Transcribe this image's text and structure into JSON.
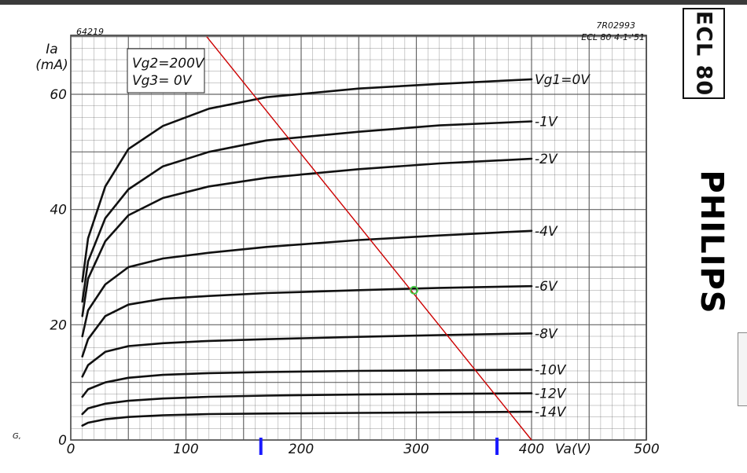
{
  "header": {
    "left_code": "64219",
    "right_code": "7R02993",
    "right_sub": "ECL 80 4-1-'51"
  },
  "conditions": {
    "line1": "Vg2=200V",
    "line2": "Vg3= 0V"
  },
  "model": "ECL 80",
  "brand": "PHILIPS",
  "stray_mark": "G,",
  "colors": {
    "curve": "#111111",
    "grid": "#555555",
    "load_line": "#cc0000",
    "operating_point": "#44cc44",
    "marker": "#1a1aff"
  },
  "chart_data": {
    "type": "line",
    "title": "",
    "xlabel": "Va(V)",
    "ylabel": "Ia\n(mA)",
    "xlim": [
      0,
      500
    ],
    "ylim": [
      0,
      70
    ],
    "x_ticks": [
      0,
      100,
      200,
      300,
      400,
      500
    ],
    "y_ticks": [
      0,
      20,
      40,
      60
    ],
    "grid": true,
    "series": [
      {
        "name": "Vg1=0V",
        "x": [
          10,
          15,
          30,
          50,
          80,
          120,
          170,
          250,
          320,
          400
        ],
        "y": [
          27.5,
          35,
          44,
          50.5,
          54.5,
          57.5,
          59.5,
          61,
          61.8,
          62.6
        ]
      },
      {
        "name": "-1V",
        "x": [
          10,
          15,
          30,
          50,
          80,
          120,
          170,
          250,
          320,
          400
        ],
        "y": [
          24,
          31,
          38.5,
          43.5,
          47.5,
          50,
          52,
          53.5,
          54.6,
          55.3
        ]
      },
      {
        "name": "-2V",
        "x": [
          10,
          15,
          30,
          50,
          80,
          120,
          170,
          250,
          320,
          400
        ],
        "y": [
          21.5,
          28,
          34.5,
          39,
          42,
          44,
          45.5,
          47,
          48,
          48.8
        ]
      },
      {
        "name": "-4V",
        "x": [
          10,
          15,
          30,
          50,
          80,
          120,
          170,
          250,
          320,
          400
        ],
        "y": [
          18,
          22.5,
          27,
          30,
          31.5,
          32.5,
          33.5,
          34.7,
          35.5,
          36.3
        ]
      },
      {
        "name": "-6V",
        "x": [
          10,
          15,
          30,
          50,
          80,
          120,
          170,
          250,
          320,
          400
        ],
        "y": [
          14.5,
          17.5,
          21.5,
          23.5,
          24.5,
          25,
          25.5,
          26,
          26.4,
          26.7
        ]
      },
      {
        "name": "-8V",
        "x": [
          10,
          15,
          30,
          50,
          80,
          120,
          170,
          250,
          320,
          400
        ],
        "y": [
          11,
          13,
          15.3,
          16.3,
          16.8,
          17.2,
          17.5,
          17.9,
          18.2,
          18.5
        ]
      },
      {
        "name": "-10V",
        "x": [
          10,
          15,
          30,
          50,
          80,
          120,
          170,
          250,
          320,
          400
        ],
        "y": [
          7.5,
          8.8,
          10,
          10.8,
          11.3,
          11.6,
          11.8,
          12,
          12.1,
          12.2
        ]
      },
      {
        "name": "-12V",
        "x": [
          10,
          15,
          30,
          50,
          80,
          120,
          170,
          250,
          320,
          400
        ],
        "y": [
          4.5,
          5.5,
          6.3,
          6.8,
          7.2,
          7.5,
          7.7,
          7.9,
          8,
          8.1
        ]
      },
      {
        "name": "-14V",
        "x": [
          10,
          15,
          30,
          50,
          80,
          120,
          170,
          250,
          320,
          400
        ],
        "y": [
          2.5,
          3,
          3.6,
          4,
          4.3,
          4.5,
          4.6,
          4.7,
          4.8,
          4.9
        ]
      }
    ],
    "load_line": {
      "x": [
        118,
        400
      ],
      "y": [
        70,
        0
      ]
    },
    "operating_point": {
      "x": 298,
      "y": 26
    },
    "axis_markers_x": [
      165,
      370
    ]
  }
}
